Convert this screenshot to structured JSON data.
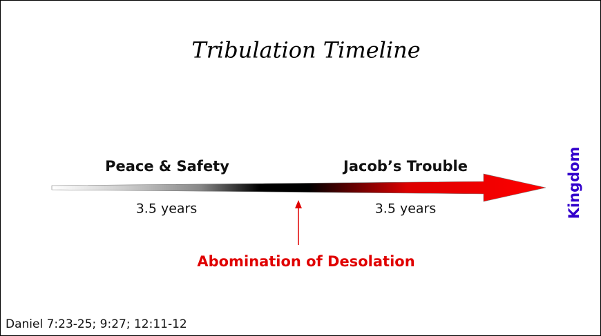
{
  "title": "Tribulation Timeline",
  "periods": [
    {
      "label": "Peace & Safety",
      "duration": "3.5 years"
    },
    {
      "label": "Jacob’s Trouble",
      "duration": "3.5 years"
    }
  ],
  "midpoint": "Abomination of Desolation",
  "end": "Kingdom",
  "reference": "Daniel 7:23-25; 9:27; 12:11-12"
}
